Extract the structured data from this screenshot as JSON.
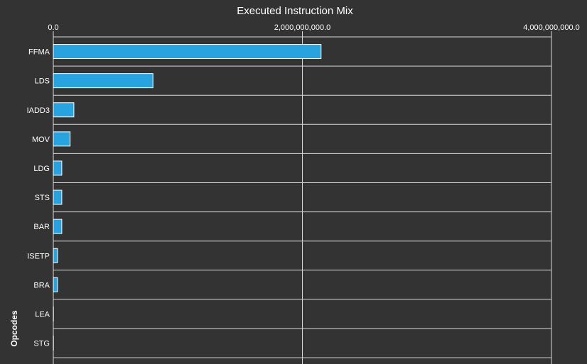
{
  "chart_data": {
    "type": "bar",
    "orientation": "horizontal",
    "title": "Executed Instruction Mix",
    "xlabel": "",
    "ylabel": "Opcodes",
    "xlim": [
      0,
      4000000000
    ],
    "x_ticks": [
      "0.0",
      "2,000,000,000.0",
      "4,000,000,000.0"
    ],
    "x_tick_values": [
      0,
      2000000000,
      4000000000
    ],
    "categories": [
      "FFMA",
      "LDS",
      "IADD3",
      "MOV",
      "LDG",
      "STS",
      "BAR",
      "ISETP",
      "BRA",
      "LEA",
      "STG"
    ],
    "values": [
      2150000000,
      800000000,
      165000000,
      135000000,
      68000000,
      68000000,
      68000000,
      34000000,
      34000000,
      1000000,
      1000000
    ],
    "grid": true,
    "colors": {
      "bar_fill": "#29a3e0",
      "bar_stroke": "#ffffff",
      "background": "#333333",
      "grid": "#d9d9d9",
      "text": "#ffffff"
    }
  }
}
